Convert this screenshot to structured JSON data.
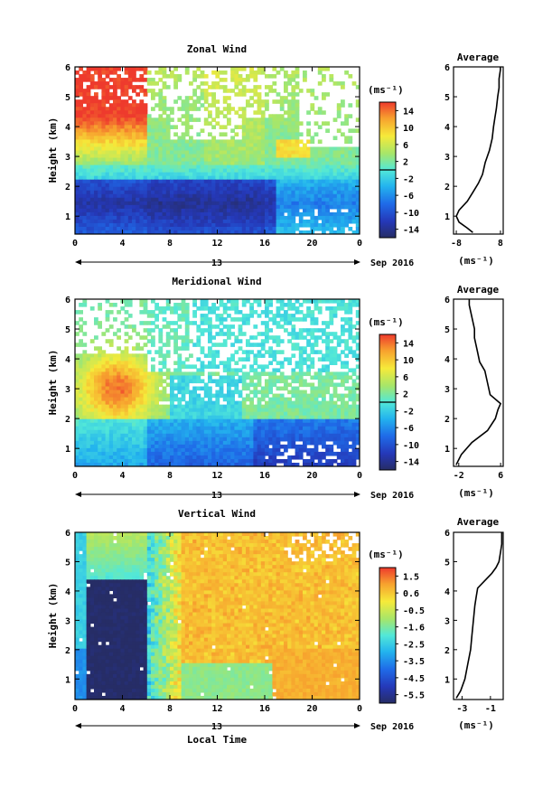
{
  "figure": {
    "date_label": "Sep 2016",
    "day_label": "13",
    "bottom_xlabel": "Local Time"
  },
  "chart_data": [
    {
      "type": "heatmap",
      "title": "Zonal Wind",
      "ylabel": "Height (km)",
      "unit_label": "(ms⁻¹)",
      "x_ticks": [
        "0",
        "4",
        "8",
        "12",
        "16",
        "20",
        "0"
      ],
      "x_range": [
        0,
        24
      ],
      "y_ticks": [
        "1",
        "2",
        "3",
        "4",
        "5",
        "6"
      ],
      "y_range": [
        0.4,
        6
      ],
      "colorbar": {
        "range": [
          -16,
          16
        ],
        "ticks": [
          "14",
          "10",
          "6",
          "2",
          "-2",
          "-6",
          "-10",
          "-14"
        ],
        "zero_line": 0
      },
      "profile": {
        "title": "Average",
        "xlabel": "(ms⁻¹)",
        "x_ticks": [
          "-8",
          "8"
        ],
        "x_range": [
          -9,
          9
        ],
        "y": [
          0.45,
          0.6,
          0.8,
          1.0,
          1.2,
          1.5,
          1.8,
          2.1,
          2.4,
          2.8,
          3.2,
          3.6,
          4.0,
          4.3,
          4.6,
          5.0,
          5.3,
          5.6,
          5.9,
          6.0
        ],
        "x": [
          -2,
          -4,
          -7,
          -8,
          -7,
          -4,
          -2,
          0,
          1.5,
          2.5,
          4,
          5,
          5.5,
          6,
          6.5,
          7,
          7.5,
          7.5,
          8,
          8
        ]
      }
    },
    {
      "type": "heatmap",
      "title": "Meridional Wind",
      "ylabel": "Height (km)",
      "unit_label": "(ms⁻¹)",
      "x_ticks": [
        "0",
        "4",
        "8",
        "12",
        "16",
        "20",
        "0"
      ],
      "x_range": [
        0,
        24
      ],
      "y_ticks": [
        "1",
        "2",
        "3",
        "4",
        "5",
        "6"
      ],
      "y_range": [
        0.4,
        6
      ],
      "colorbar": {
        "range": [
          -16,
          16
        ],
        "ticks": [
          "14",
          "10",
          "6",
          "2",
          "-2",
          "-6",
          "-10",
          "-14"
        ],
        "zero_line": 0
      },
      "profile": {
        "title": "Average",
        "xlabel": "(ms⁻¹)",
        "x_ticks": [
          "-2",
          "6"
        ],
        "x_range": [
          -3,
          6.5
        ],
        "y": [
          0.45,
          0.8,
          1.2,
          1.6,
          2.0,
          2.3,
          2.5,
          2.8,
          3.2,
          3.6,
          3.9,
          4.3,
          4.7,
          5.0,
          5.4,
          5.8,
          6.0
        ],
        "x": [
          -2.5,
          -1.5,
          0.5,
          3.5,
          5,
          5.5,
          6,
          4,
          3.5,
          3,
          2,
          1.5,
          1,
          1,
          0.5,
          0,
          0
        ]
      }
    },
    {
      "type": "heatmap",
      "title": "Vertical Wind",
      "ylabel": "Height (km)",
      "unit_label": "(ms⁻¹)",
      "x_ticks": [
        "0",
        "4",
        "8",
        "12",
        "16",
        "20",
        "0"
      ],
      "x_range": [
        0,
        24
      ],
      "y_ticks": [
        "1",
        "2",
        "3",
        "4",
        "5",
        "6"
      ],
      "y_range": [
        0.3,
        6
      ],
      "colorbar": {
        "range": [
          -6,
          2
        ],
        "ticks": [
          "1.5",
          "0.6",
          "-0.5",
          "-1.6",
          "-2.5",
          "-3.5",
          "-4.5",
          "-5.5"
        ]
      },
      "profile": {
        "title": "Average",
        "xlabel": "(ms⁻¹)",
        "x_ticks": [
          "-3",
          "-1"
        ],
        "x_range": [
          -3.6,
          -0.1
        ],
        "y": [
          0.35,
          0.6,
          1.0,
          1.5,
          2.0,
          2.5,
          3.0,
          3.5,
          3.8,
          4.1,
          4.4,
          4.6,
          4.8,
          5.0,
          5.3,
          5.6,
          6.0
        ],
        "x": [
          -3.4,
          -3.1,
          -2.8,
          -2.6,
          -2.4,
          -2.3,
          -2.2,
          -2.1,
          -2.0,
          -1.9,
          -1.3,
          -0.9,
          -0.6,
          -0.4,
          -0.3,
          -0.2,
          -0.2
        ]
      }
    }
  ]
}
